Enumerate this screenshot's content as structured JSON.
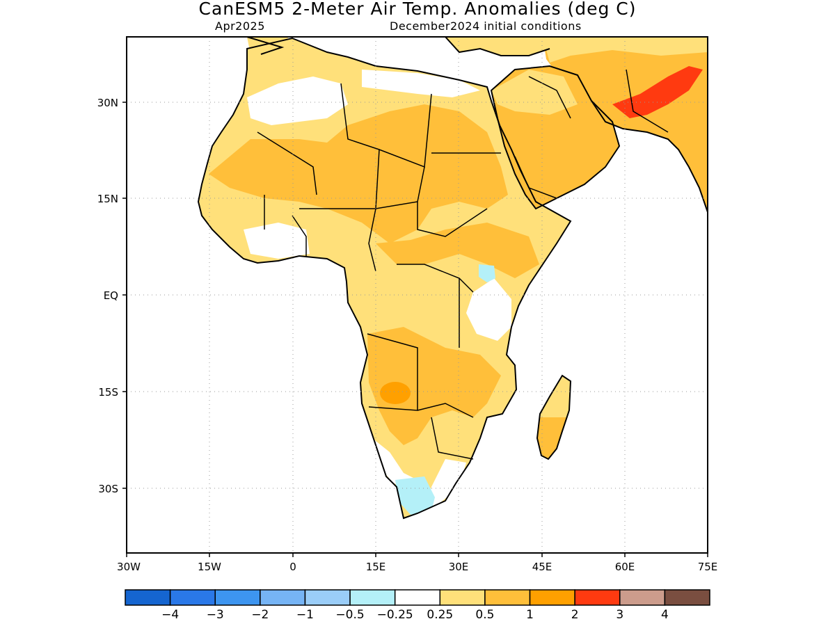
{
  "title": "CanESM5 2-Meter Air Temp. Anomalies (deg C)",
  "subtitle_left": "Apr2025",
  "subtitle_right": "December2024 initial conditions",
  "lat_labels": [
    "30N",
    "15N",
    "EQ",
    "15S",
    "30S"
  ],
  "lon_labels": [
    "30W",
    "15W",
    "0",
    "15E",
    "30E",
    "45E",
    "60E",
    "75E"
  ],
  "colorbar": {
    "colors": [
      "#1565d0",
      "#2a78e8",
      "#3d95f0",
      "#76b4f5",
      "#9acdf8",
      "#b4f0f8",
      "#ffffff",
      "#ffe07a",
      "#ffbf3a",
      "#ffa000",
      "#ff3a10",
      "#cc9c8c",
      "#7a4e40"
    ],
    "labels": [
      "-4",
      "-3",
      "-2",
      "-1",
      "-0.5",
      "-0.25",
      "0.25",
      "0.5",
      "1",
      "2",
      "3",
      "4"
    ]
  },
  "colors": {
    "ocean": "#ffffff",
    "coast": "#000000",
    "anom_025_05": "#ffe07a",
    "anom_05_1": "#ffbf3a",
    "anom_1_2": "#ffa000",
    "anom_2_3": "#ff3a10",
    "anom_neg": "#b4f0f8"
  }
}
